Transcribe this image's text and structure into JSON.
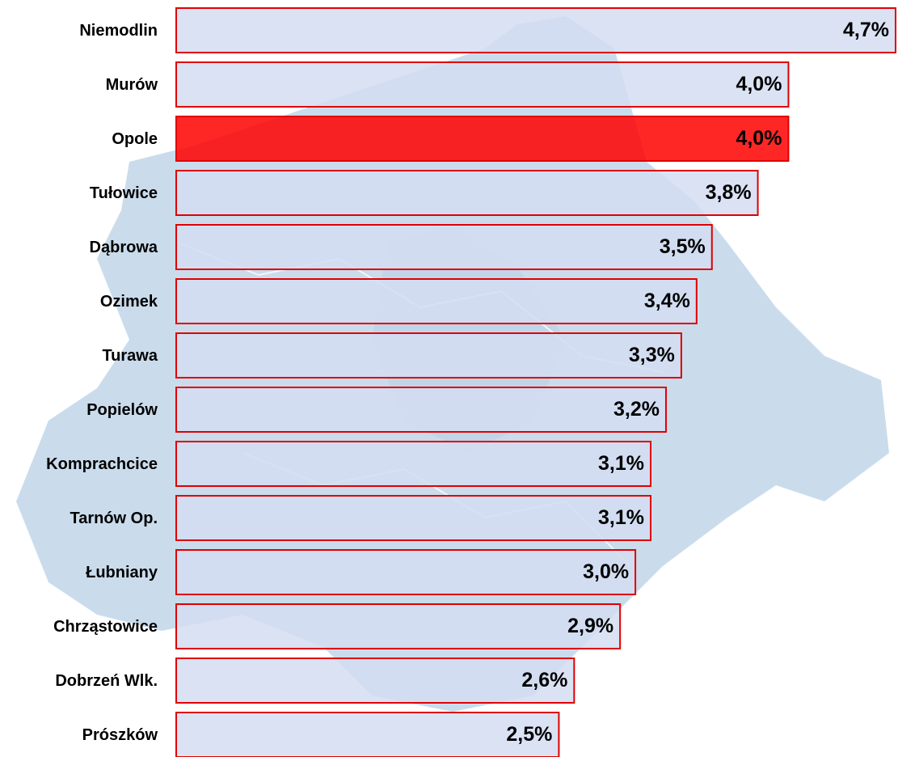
{
  "chart_data": {
    "type": "hbar",
    "categories": [
      "Niemodlin",
      "Murów",
      "Opole",
      "Tułowice",
      "Dąbrowa",
      "Ozimek",
      "Turawa",
      "Popielów",
      "Komprachcice",
      "Tarnów Op.",
      "Łubniany",
      "Chrząstowice",
      "Dobrzeń Wlk.",
      "Prószków"
    ],
    "values": [
      4.7,
      4.0,
      4.0,
      3.8,
      3.5,
      3.4,
      3.3,
      3.2,
      3.1,
      3.1,
      3.0,
      2.9,
      2.6,
      2.5
    ],
    "value_labels": [
      "4,7%",
      "4,0%",
      "4,0%",
      "3,8%",
      "3,5%",
      "3,4%",
      "3,3%",
      "3,2%",
      "3,1%",
      "3,1%",
      "3,0%",
      "2,9%",
      "2,6%",
      "2,5%"
    ],
    "colors": [
      "#d3ddf2",
      "#d3ddf2",
      "#ff0000",
      "#d3ddf2",
      "#d3ddf2",
      "#d3ddf2",
      "#d3ddf2",
      "#d3ddf2",
      "#d3ddf2",
      "#d3ddf2",
      "#d3ddf2",
      "#d3ddf2",
      "#d3ddf2",
      "#d3ddf2"
    ],
    "edge_color": "#e00000"
  }
}
